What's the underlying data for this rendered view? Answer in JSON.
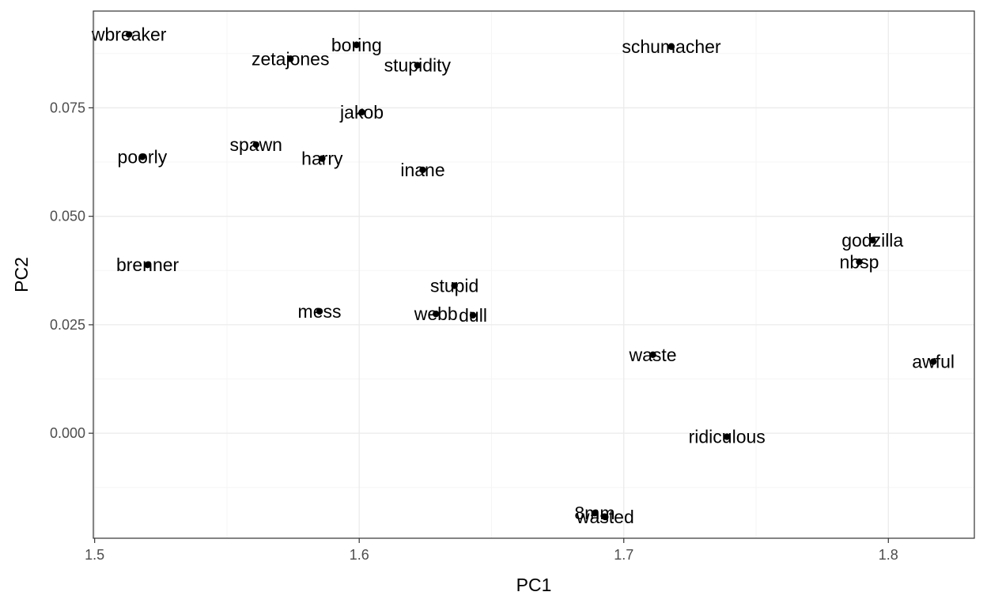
{
  "chart_data": {
    "type": "scatter",
    "title": "",
    "xlabel": "PC1",
    "ylabel": "PC2",
    "xlim": [
      1.4995,
      1.8325
    ],
    "ylim": [
      -0.0242,
      0.0973
    ],
    "grid": true,
    "x_ticks": [
      1.5,
      1.6,
      1.7,
      1.8
    ],
    "x_tick_labels": [
      "1.5",
      "1.6",
      "1.7",
      "1.8"
    ],
    "y_ticks": [
      0.0,
      0.025,
      0.05,
      0.075
    ],
    "y_tick_labels": [
      "0.000",
      "0.025",
      "0.050",
      "0.075"
    ],
    "colors": {
      "panel_border": "#333333",
      "grid_major": "#ebebeb",
      "grid_minor": "#f5f5f5",
      "point": "#000000"
    },
    "points": [
      {
        "label": "wbreaker",
        "x": 1.513,
        "y": 0.0919
      },
      {
        "label": "zetajones",
        "x": 1.574,
        "y": 0.0863
      },
      {
        "label": "boring",
        "x": 1.599,
        "y": 0.0895
      },
      {
        "label": "stupidity",
        "x": 1.622,
        "y": 0.0848
      },
      {
        "label": "schumacher",
        "x": 1.718,
        "y": 0.0891
      },
      {
        "label": "jakob",
        "x": 1.601,
        "y": 0.074
      },
      {
        "label": "spawn",
        "x": 1.561,
        "y": 0.0665
      },
      {
        "label": "poorly",
        "x": 1.518,
        "y": 0.0637
      },
      {
        "label": "harry",
        "x": 1.586,
        "y": 0.0633
      },
      {
        "label": "inane",
        "x": 1.624,
        "y": 0.0607
      },
      {
        "label": "godzilla",
        "x": 1.794,
        "y": 0.0445
      },
      {
        "label": "nbsp",
        "x": 1.789,
        "y": 0.0395
      },
      {
        "label": "brenner",
        "x": 1.52,
        "y": 0.0388
      },
      {
        "label": "stupid",
        "x": 1.636,
        "y": 0.034
      },
      {
        "label": "mess",
        "x": 1.585,
        "y": 0.0281
      },
      {
        "label": "webb",
        "x": 1.629,
        "y": 0.0275
      },
      {
        "label": "dull",
        "x": 1.643,
        "y": 0.0272
      },
      {
        "label": "waste",
        "x": 1.711,
        "y": 0.0181
      },
      {
        "label": "awful",
        "x": 1.817,
        "y": 0.0165
      },
      {
        "label": "ridiculous",
        "x": 1.739,
        "y": -0.0008
      },
      {
        "label": "8mm",
        "x": 1.689,
        "y": -0.0184
      },
      {
        "label": "wasted",
        "x": 1.693,
        "y": -0.0193
      }
    ]
  }
}
